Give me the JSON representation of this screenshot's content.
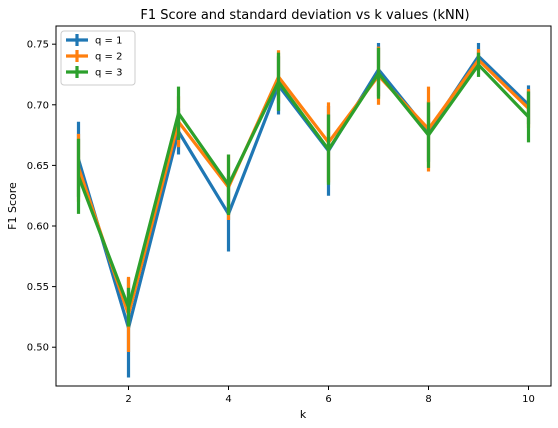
{
  "chart_data": {
    "type": "line",
    "title": "F1 Score and standard deviation vs k values (kNN)",
    "xlabel": "k",
    "ylabel": "F1 Score",
    "xlim": [
      0.55,
      10.45
    ],
    "ylim": [
      0.468,
      0.765
    ],
    "xticks": [
      2,
      4,
      6,
      8,
      10
    ],
    "yticks": [
      0.5,
      0.55,
      0.6,
      0.65,
      0.7,
      0.75
    ],
    "ytick_labels": [
      "0.50",
      "0.55",
      "0.60",
      "0.65",
      "0.70",
      "0.75"
    ],
    "grid": false,
    "legend_position": "upper-left",
    "x": [
      1,
      2,
      3,
      4,
      5,
      6,
      7,
      8,
      9,
      10
    ],
    "series": [
      {
        "name": "q = 1",
        "color": "#1f77b4",
        "values": [
          0.655,
          0.516,
          0.678,
          0.61,
          0.716,
          0.662,
          0.729,
          0.678,
          0.74,
          0.7
        ],
        "errors": [
          0.031,
          0.041,
          0.019,
          0.031,
          0.024,
          0.037,
          0.022,
          0.025,
          0.011,
          0.016
        ]
      },
      {
        "name": "q = 2",
        "color": "#ff7f0e",
        "values": [
          0.648,
          0.527,
          0.686,
          0.632,
          0.723,
          0.669,
          0.724,
          0.68,
          0.737,
          0.697
        ],
        "errors": [
          0.028,
          0.031,
          0.021,
          0.027,
          0.022,
          0.033,
          0.024,
          0.035,
          0.009,
          0.016
        ]
      },
      {
        "name": "q = 3",
        "color": "#2ca02c",
        "values": [
          0.641,
          0.533,
          0.693,
          0.634,
          0.719,
          0.663,
          0.726,
          0.675,
          0.733,
          0.69
        ],
        "errors": [
          0.031,
          0.016,
          0.022,
          0.025,
          0.024,
          0.029,
          0.021,
          0.027,
          0.01,
          0.021
        ]
      }
    ]
  }
}
